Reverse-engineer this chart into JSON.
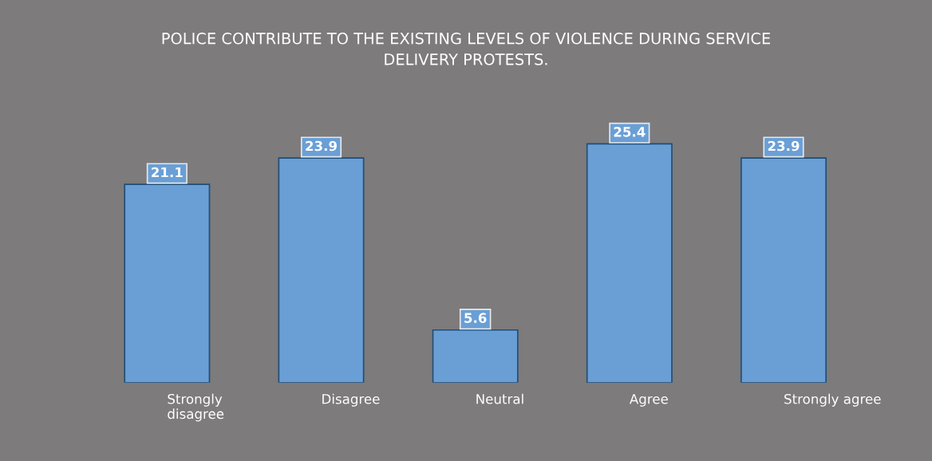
{
  "chart_data": {
    "type": "bar",
    "title": "POLICE CONTRIBUTE TO THE EXISTING LEVELS OF VIOLENCE DURING SERVICE\nDELIVERY PROTESTS.",
    "categories": [
      "Strongly\ndisagree",
      "Disagree",
      "Neutral",
      "Agree",
      "Strongly agree"
    ],
    "values": [
      21.1,
      23.9,
      5.6,
      25.4,
      23.9
    ],
    "color": "#6a9fd6",
    "data_labels": true,
    "grid": false,
    "legend": false
  }
}
